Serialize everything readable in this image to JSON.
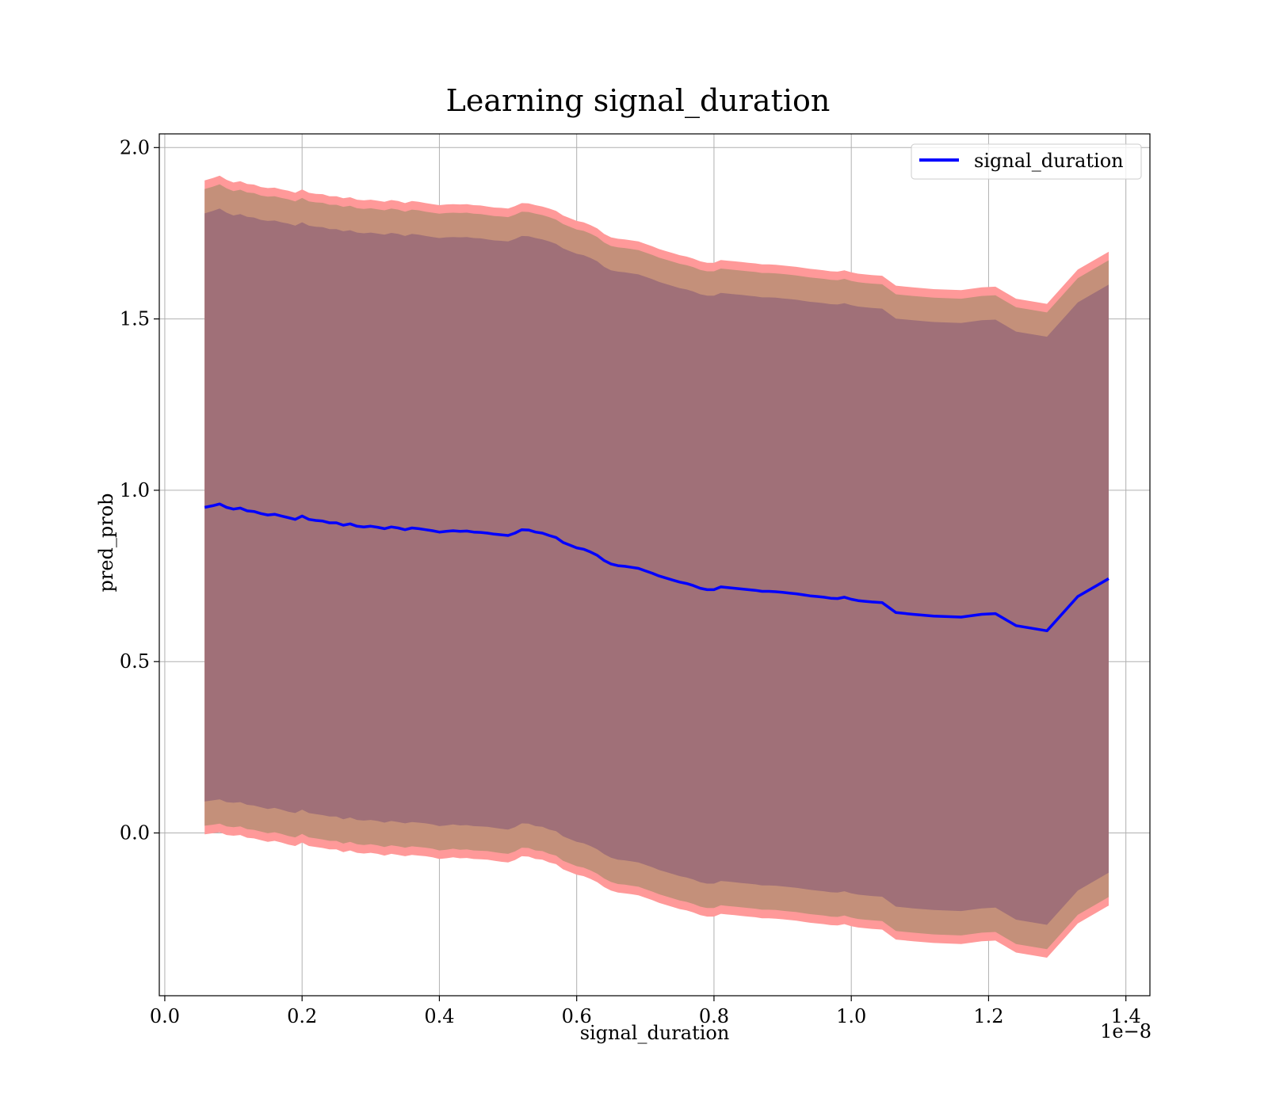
{
  "chart_data": {
    "type": "line",
    "title": "Learning signal_duration",
    "xlabel": "signal_duration",
    "ylabel": "pred_prob",
    "x_offset_label": "1e−8",
    "xlim": [
      -0.008,
      1.435
    ],
    "ylim": [
      -0.475,
      2.04
    ],
    "xticks": [
      0.0,
      0.2,
      0.4,
      0.6,
      0.8,
      1.0,
      1.2,
      1.4
    ],
    "xtick_labels": [
      "0.0",
      "0.2",
      "0.4",
      "0.6",
      "0.8",
      "1.0",
      "1.2",
      "1.4"
    ],
    "yticks": [
      0.0,
      0.5,
      1.0,
      1.5,
      2.0
    ],
    "ytick_labels": [
      "0.0",
      "0.5",
      "1.0",
      "1.5",
      "2.0"
    ],
    "grid": true,
    "legend_position": "top-right",
    "legend": [
      "signal_duration"
    ],
    "colors": {
      "line": "#0000ff",
      "band_outer": "#ff9999",
      "band_middle": "#c4907a",
      "band_inner": "#a07078",
      "grid": "#b0b0b0"
    },
    "series": [
      {
        "name": "signal_duration",
        "x": [
          0.058,
          0.07,
          0.08,
          0.09,
          0.1,
          0.11,
          0.12,
          0.13,
          0.14,
          0.15,
          0.16,
          0.17,
          0.18,
          0.19,
          0.2,
          0.21,
          0.22,
          0.23,
          0.24,
          0.25,
          0.26,
          0.27,
          0.28,
          0.29,
          0.3,
          0.31,
          0.32,
          0.33,
          0.34,
          0.35,
          0.36,
          0.37,
          0.38,
          0.39,
          0.4,
          0.41,
          0.42,
          0.43,
          0.44,
          0.45,
          0.46,
          0.47,
          0.48,
          0.49,
          0.5,
          0.51,
          0.52,
          0.53,
          0.54,
          0.55,
          0.56,
          0.57,
          0.58,
          0.59,
          0.6,
          0.61,
          0.62,
          0.63,
          0.64,
          0.65,
          0.66,
          0.67,
          0.68,
          0.69,
          0.7,
          0.71,
          0.72,
          0.73,
          0.74,
          0.75,
          0.76,
          0.77,
          0.78,
          0.79,
          0.8,
          0.81,
          0.82,
          0.83,
          0.84,
          0.85,
          0.86,
          0.87,
          0.88,
          0.89,
          0.9,
          0.91,
          0.92,
          0.93,
          0.94,
          0.95,
          0.96,
          0.97,
          0.98,
          0.99,
          1.0,
          1.01,
          1.02,
          1.03,
          1.045,
          1.065,
          1.09,
          1.12,
          1.16,
          1.19,
          1.21,
          1.24,
          1.285,
          1.33,
          1.375
        ],
        "mean": [
          0.95,
          0.955,
          0.96,
          0.95,
          0.945,
          0.948,
          0.94,
          0.938,
          0.932,
          0.928,
          0.93,
          0.925,
          0.92,
          0.915,
          0.925,
          0.915,
          0.912,
          0.91,
          0.905,
          0.905,
          0.898,
          0.902,
          0.895,
          0.893,
          0.895,
          0.892,
          0.888,
          0.893,
          0.89,
          0.885,
          0.89,
          0.888,
          0.885,
          0.882,
          0.878,
          0.88,
          0.882,
          0.88,
          0.881,
          0.878,
          0.877,
          0.875,
          0.872,
          0.87,
          0.868,
          0.875,
          0.885,
          0.884,
          0.878,
          0.875,
          0.868,
          0.862,
          0.848,
          0.84,
          0.832,
          0.828,
          0.82,
          0.81,
          0.795,
          0.785,
          0.78,
          0.778,
          0.775,
          0.772,
          0.765,
          0.758,
          0.75,
          0.744,
          0.738,
          0.732,
          0.728,
          0.722,
          0.714,
          0.71,
          0.71,
          0.718,
          0.716,
          0.714,
          0.712,
          0.71,
          0.708,
          0.705,
          0.705,
          0.704,
          0.702,
          0.7,
          0.698,
          0.695,
          0.692,
          0.69,
          0.688,
          0.685,
          0.684,
          0.688,
          0.682,
          0.678,
          0.676,
          0.674,
          0.672,
          0.643,
          0.638,
          0.633,
          0.63,
          0.638,
          0.64,
          0.605,
          0.59,
          0.69,
          0.742
        ],
        "sd1_lower": [
          0.092,
          0.095,
          0.098,
          0.09,
          0.088,
          0.09,
          0.082,
          0.08,
          0.075,
          0.07,
          0.073,
          0.068,
          0.062,
          0.058,
          0.068,
          0.058,
          0.055,
          0.052,
          0.048,
          0.048,
          0.04,
          0.045,
          0.038,
          0.036,
          0.038,
          0.035,
          0.03,
          0.035,
          0.032,
          0.028,
          0.032,
          0.03,
          0.028,
          0.025,
          0.02,
          0.022,
          0.025,
          0.022,
          0.023,
          0.02,
          0.019,
          0.018,
          0.015,
          0.012,
          0.01,
          0.017,
          0.028,
          0.027,
          0.02,
          0.018,
          0.01,
          0.005,
          -0.01,
          -0.018,
          -0.026,
          -0.03,
          -0.038,
          -0.048,
          -0.062,
          -0.072,
          -0.078,
          -0.08,
          -0.083,
          -0.086,
          -0.093,
          -0.1,
          -0.108,
          -0.114,
          -0.12,
          -0.126,
          -0.13,
          -0.136,
          -0.144,
          -0.148,
          -0.148,
          -0.14,
          -0.142,
          -0.144,
          -0.146,
          -0.148,
          -0.15,
          -0.153,
          -0.153,
          -0.154,
          -0.156,
          -0.158,
          -0.16,
          -0.163,
          -0.166,
          -0.168,
          -0.17,
          -0.173,
          -0.174,
          -0.17,
          -0.176,
          -0.18,
          -0.182,
          -0.184,
          -0.186,
          -0.215,
          -0.22,
          -0.225,
          -0.228,
          -0.22,
          -0.218,
          -0.253,
          -0.268,
          -0.168,
          -0.116
        ],
        "sd1_upper": [
          1.808,
          1.815,
          1.822,
          1.81,
          1.802,
          1.806,
          1.798,
          1.796,
          1.789,
          1.786,
          1.787,
          1.782,
          1.778,
          1.772,
          1.782,
          1.772,
          1.769,
          1.768,
          1.762,
          1.762,
          1.756,
          1.759,
          1.752,
          1.75,
          1.752,
          1.749,
          1.746,
          1.751,
          1.748,
          1.742,
          1.748,
          1.746,
          1.742,
          1.739,
          1.736,
          1.738,
          1.739,
          1.738,
          1.739,
          1.736,
          1.735,
          1.732,
          1.729,
          1.728,
          1.726,
          1.733,
          1.742,
          1.741,
          1.736,
          1.732,
          1.726,
          1.719,
          1.706,
          1.698,
          1.69,
          1.686,
          1.678,
          1.668,
          1.652,
          1.642,
          1.638,
          1.636,
          1.633,
          1.63,
          1.623,
          1.616,
          1.608,
          1.602,
          1.596,
          1.59,
          1.586,
          1.58,
          1.572,
          1.568,
          1.568,
          1.576,
          1.574,
          1.572,
          1.57,
          1.568,
          1.566,
          1.563,
          1.563,
          1.562,
          1.56,
          1.558,
          1.556,
          1.553,
          1.55,
          1.548,
          1.546,
          1.543,
          1.542,
          1.546,
          1.54,
          1.536,
          1.534,
          1.532,
          1.53,
          1.501,
          1.496,
          1.491,
          1.488,
          1.496,
          1.498,
          1.463,
          1.448,
          1.548,
          1.6
        ],
        "sd2_lower": [
          0.021,
          0.024,
          0.027,
          0.019,
          0.017,
          0.019,
          0.011,
          0.009,
          0.004,
          -0.001,
          0.002,
          -0.003,
          -0.009,
          -0.013,
          -0.003,
          -0.013,
          -0.016,
          -0.019,
          -0.023,
          -0.023,
          -0.031,
          -0.026,
          -0.033,
          -0.035,
          -0.033,
          -0.036,
          -0.041,
          -0.036,
          -0.039,
          -0.043,
          -0.039,
          -0.041,
          -0.043,
          -0.046,
          -0.051,
          -0.049,
          -0.046,
          -0.049,
          -0.048,
          -0.051,
          -0.052,
          -0.053,
          -0.056,
          -0.059,
          -0.061,
          -0.054,
          -0.043,
          -0.044,
          -0.051,
          -0.053,
          -0.061,
          -0.066,
          -0.081,
          -0.089,
          -0.097,
          -0.101,
          -0.109,
          -0.119,
          -0.133,
          -0.143,
          -0.149,
          -0.151,
          -0.154,
          -0.157,
          -0.164,
          -0.171,
          -0.179,
          -0.185,
          -0.191,
          -0.197,
          -0.201,
          -0.207,
          -0.215,
          -0.219,
          -0.219,
          -0.211,
          -0.213,
          -0.215,
          -0.217,
          -0.219,
          -0.221,
          -0.224,
          -0.224,
          -0.225,
          -0.227,
          -0.229,
          -0.231,
          -0.234,
          -0.237,
          -0.239,
          -0.241,
          -0.244,
          -0.245,
          -0.241,
          -0.247,
          -0.251,
          -0.253,
          -0.255,
          -0.257,
          -0.286,
          -0.291,
          -0.296,
          -0.299,
          -0.291,
          -0.289,
          -0.324,
          -0.339,
          -0.239,
          -0.187
        ],
        "sd2_upper": [
          1.879,
          1.886,
          1.893,
          1.881,
          1.873,
          1.877,
          1.869,
          1.867,
          1.86,
          1.857,
          1.858,
          1.853,
          1.849,
          1.843,
          1.853,
          1.843,
          1.84,
          1.839,
          1.833,
          1.833,
          1.827,
          1.83,
          1.823,
          1.821,
          1.823,
          1.82,
          1.817,
          1.822,
          1.819,
          1.813,
          1.819,
          1.817,
          1.813,
          1.81,
          1.807,
          1.809,
          1.81,
          1.809,
          1.81,
          1.807,
          1.806,
          1.803,
          1.8,
          1.799,
          1.797,
          1.804,
          1.813,
          1.812,
          1.807,
          1.803,
          1.797,
          1.79,
          1.777,
          1.769,
          1.761,
          1.757,
          1.749,
          1.739,
          1.723,
          1.713,
          1.709,
          1.707,
          1.704,
          1.701,
          1.694,
          1.687,
          1.679,
          1.673,
          1.667,
          1.661,
          1.657,
          1.651,
          1.643,
          1.639,
          1.639,
          1.647,
          1.645,
          1.643,
          1.641,
          1.639,
          1.637,
          1.634,
          1.634,
          1.633,
          1.631,
          1.629,
          1.627,
          1.624,
          1.621,
          1.619,
          1.617,
          1.614,
          1.613,
          1.617,
          1.611,
          1.607,
          1.605,
          1.603,
          1.601,
          1.572,
          1.567,
          1.562,
          1.559,
          1.567,
          1.569,
          1.534,
          1.519,
          1.619,
          1.671
        ],
        "sd3_lower": [
          -0.004,
          -0.001,
          0.002,
          -0.006,
          -0.008,
          -0.006,
          -0.014,
          -0.016,
          -0.021,
          -0.026,
          -0.023,
          -0.028,
          -0.034,
          -0.038,
          -0.028,
          -0.038,
          -0.041,
          -0.044,
          -0.048,
          -0.048,
          -0.056,
          -0.051,
          -0.058,
          -0.06,
          -0.058,
          -0.061,
          -0.066,
          -0.061,
          -0.064,
          -0.068,
          -0.064,
          -0.066,
          -0.068,
          -0.071,
          -0.076,
          -0.074,
          -0.071,
          -0.074,
          -0.073,
          -0.076,
          -0.077,
          -0.078,
          -0.081,
          -0.084,
          -0.086,
          -0.079,
          -0.068,
          -0.069,
          -0.076,
          -0.078,
          -0.086,
          -0.091,
          -0.106,
          -0.114,
          -0.122,
          -0.126,
          -0.134,
          -0.144,
          -0.158,
          -0.168,
          -0.174,
          -0.176,
          -0.179,
          -0.182,
          -0.189,
          -0.196,
          -0.204,
          -0.21,
          -0.216,
          -0.222,
          -0.226,
          -0.232,
          -0.24,
          -0.244,
          -0.244,
          -0.236,
          -0.238,
          -0.24,
          -0.242,
          -0.244,
          -0.246,
          -0.249,
          -0.249,
          -0.25,
          -0.252,
          -0.254,
          -0.256,
          -0.259,
          -0.262,
          -0.264,
          -0.266,
          -0.269,
          -0.27,
          -0.266,
          -0.272,
          -0.276,
          -0.278,
          -0.28,
          -0.282,
          -0.311,
          -0.316,
          -0.321,
          -0.324,
          -0.316,
          -0.314,
          -0.349,
          -0.364,
          -0.264,
          -0.212
        ],
        "sd3_upper": [
          1.904,
          1.911,
          1.918,
          1.906,
          1.898,
          1.902,
          1.894,
          1.892,
          1.885,
          1.882,
          1.883,
          1.878,
          1.874,
          1.868,
          1.878,
          1.868,
          1.865,
          1.864,
          1.858,
          1.858,
          1.852,
          1.855,
          1.848,
          1.846,
          1.848,
          1.845,
          1.842,
          1.847,
          1.844,
          1.838,
          1.844,
          1.842,
          1.838,
          1.835,
          1.832,
          1.834,
          1.835,
          1.834,
          1.835,
          1.832,
          1.831,
          1.828,
          1.825,
          1.824,
          1.822,
          1.829,
          1.838,
          1.837,
          1.832,
          1.828,
          1.822,
          1.815,
          1.802,
          1.794,
          1.786,
          1.782,
          1.774,
          1.764,
          1.748,
          1.738,
          1.734,
          1.732,
          1.729,
          1.726,
          1.719,
          1.712,
          1.704,
          1.698,
          1.692,
          1.686,
          1.682,
          1.676,
          1.668,
          1.664,
          1.664,
          1.672,
          1.67,
          1.668,
          1.666,
          1.664,
          1.662,
          1.659,
          1.659,
          1.658,
          1.656,
          1.654,
          1.652,
          1.649,
          1.646,
          1.644,
          1.642,
          1.639,
          1.638,
          1.642,
          1.636,
          1.632,
          1.63,
          1.628,
          1.626,
          1.597,
          1.592,
          1.587,
          1.584,
          1.592,
          1.594,
          1.559,
          1.544,
          1.644,
          1.696
        ]
      }
    ]
  }
}
